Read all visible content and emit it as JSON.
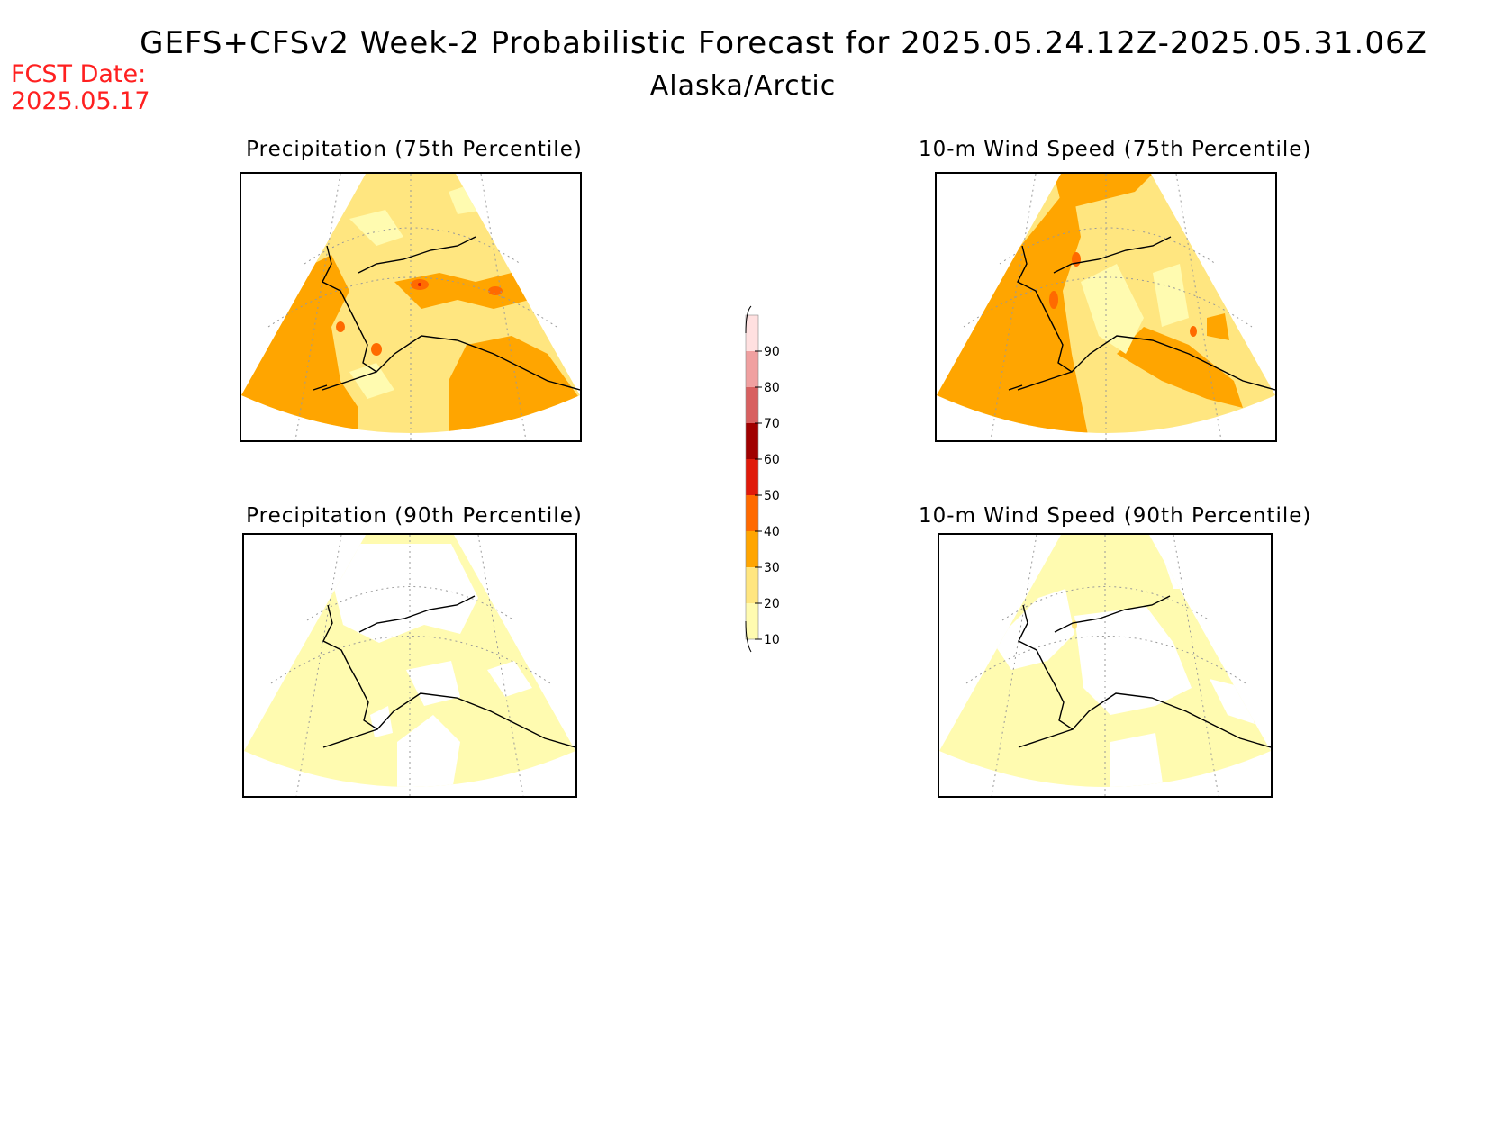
{
  "header": {
    "title": "GEFS+CFSv2 Week-2 Probabilistic Forecast for 2025.05.24.12Z-2025.05.31.06Z",
    "region": "Alaska/Arctic",
    "fcst_label": "FCST Date:",
    "fcst_date": "2025.05.17"
  },
  "panels": [
    {
      "title": "Precipitation (75th Percentile)"
    },
    {
      "title": "10-m Wind Speed (75th Percentile)"
    },
    {
      "title": "Precipitation (90th Percentile)"
    },
    {
      "title": "10-m Wind Speed (90th Percentile)"
    }
  ],
  "colorbar": {
    "levels": [
      "10",
      "20",
      "30",
      "40",
      "50",
      "60",
      "70",
      "80",
      "90"
    ],
    "colors": [
      "#fffbb0",
      "#ffe680",
      "#ffa500",
      "#ff6a00",
      "#e01a0a",
      "#a00000",
      "#d86060",
      "#f0a0a0",
      "#ffe0e0"
    ]
  }
}
